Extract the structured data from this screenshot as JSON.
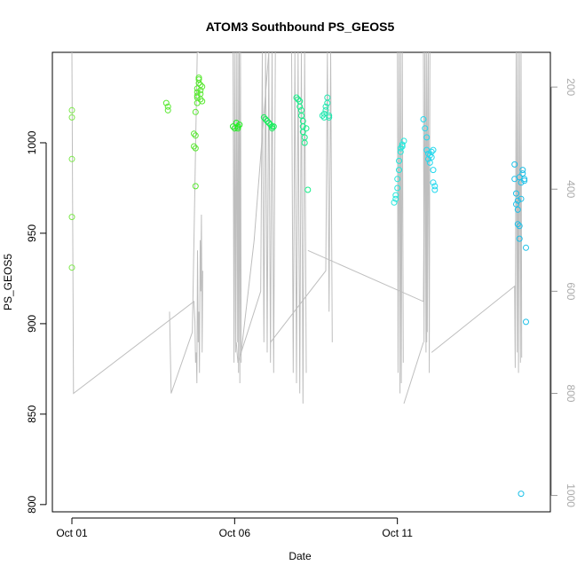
{
  "chart_data": {
    "type": "scatter",
    "title": "ATOM3 Southbound PS_GEOS5",
    "xlabel": "Date",
    "ylabel": "PS_GEOS5",
    "x_range_days": [
      -0.6,
      14.7
    ],
    "ylim": [
      796,
      1050
    ],
    "right_axis_lim": [
      132,
      1032
    ],
    "x_ticks": [
      {
        "day": 0,
        "label": "Oct 01"
      },
      {
        "day": 5,
        "label": "Oct 06"
      },
      {
        "day": 10,
        "label": "Oct 11"
      }
    ],
    "y_ticks": [
      800,
      850,
      900,
      950,
      1000
    ],
    "right_ticks": [
      200,
      400,
      600,
      800,
      1000
    ],
    "grid": false,
    "legend": "none",
    "colors": {
      "point_palette": [
        "#7CE84A",
        "#58E830",
        "#22EE22",
        "#14EE5A",
        "#14EE88",
        "#22E8B0",
        "#22E8DC",
        "#22D8EE",
        "#1CC0E8",
        "#1A9AE0"
      ],
      "track": "#BEBEBE"
    },
    "series": [
      {
        "x": [
          0.0,
          0.0,
          0.0,
          0.0,
          0.0
        ],
        "y": [
          1018,
          1014,
          991,
          959,
          931
        ]
      },
      {
        "x": [
          2.9,
          2.95,
          2.95,
          3.75,
          3.75,
          3.8,
          3.8,
          3.8,
          3.85,
          3.85,
          3.85,
          3.9,
          3.9,
          3.9,
          3.95,
          3.95,
          3.95,
          3.95,
          4.0,
          4.0,
          3.85,
          3.85,
          3.8
        ],
        "y": [
          1022,
          1020,
          1018,
          1005,
          998,
          997,
          1004,
          1017,
          1022,
          1026,
          1030,
          1033,
          1036,
          1035,
          1032,
          1029,
          1027,
          1024,
          1023,
          1031,
          1025,
          1028,
          976
        ]
      },
      {
        "x": [
          4.95,
          5.0,
          5.05,
          5.1,
          5.1,
          5.15
        ],
        "y": [
          1009,
          1008,
          1011,
          1009,
          1008,
          1010
        ]
      },
      {
        "x": [
          5.9,
          5.95,
          6.0,
          6.05,
          6.1,
          6.15,
          6.15,
          6.2
        ],
        "y": [
          1014,
          1013,
          1012,
          1011,
          1010,
          1009,
          1008,
          1009
        ]
      },
      {
        "x": [
          6.9,
          6.95,
          7.0,
          7.0,
          7.05,
          7.05,
          7.1,
          7.1,
          7.1,
          7.15,
          7.15,
          7.2,
          7.25
        ],
        "y": [
          1025,
          1024,
          1023,
          1020,
          1018,
          1015,
          1012,
          1009,
          1006,
          1003,
          1000,
          1008,
          974
        ]
      },
      {
        "x": [
          7.7,
          7.75,
          7.75,
          7.8,
          7.8,
          7.85,
          7.85,
          7.9,
          7.9
        ],
        "y": [
          1015,
          1014,
          1016,
          1018,
          1020,
          1022,
          1025,
          1014,
          1015
        ]
      },
      {
        "x": [
          9.9,
          9.95,
          9.95,
          10.0,
          10.0,
          10.05,
          10.05,
          10.1,
          10.1,
          10.15,
          10.15,
          10.2
        ],
        "y": [
          967,
          969,
          971,
          975,
          980,
          985,
          990,
          995,
          997,
          998,
          999,
          1001
        ]
      },
      {
        "x": [
          10.8,
          10.85,
          10.9,
          10.9,
          10.95,
          10.95,
          11.0,
          11.0,
          11.05,
          11.05,
          11.1,
          11.1,
          11.1,
          11.15,
          11.15
        ],
        "y": [
          1013,
          1008,
          1003,
          996,
          994,
          991,
          989,
          993,
          995,
          992,
          996,
          985,
          978,
          976,
          974
        ]
      },
      {
        "x": [
          13.6,
          13.6,
          13.65,
          13.65,
          13.7,
          13.7,
          13.7,
          13.75,
          13.75,
          13.8,
          13.8,
          13.85,
          13.85,
          13.9,
          13.9,
          13.95,
          13.95,
          13.75,
          13.8
        ],
        "y": [
          988,
          980,
          972,
          966,
          963,
          968,
          955,
          954,
          947,
          969,
          978,
          985,
          983,
          980,
          979,
          942,
          901,
          981,
          806
        ]
      }
    ],
    "tracks_right_axis": [
      {
        "x": [
          0.0,
          0.05,
          3.75,
          3.78,
          3.8,
          3.82,
          3.84,
          3.86,
          3.88,
          3.9,
          3.92,
          3.94,
          3.96,
          3.98,
          4.0,
          4.02
        ],
        "y": [
          132,
          800,
          620,
          660,
          740,
          720,
          780,
          520,
          700,
          640,
          760,
          500,
          600,
          450,
          720,
          560
        ]
      },
      {
        "x": [
          3.0,
          3.05,
          3.7,
          3.85,
          3.9
        ],
        "y": [
          640,
          800,
          680,
          132,
          132
        ]
      },
      {
        "x": [
          4.95,
          4.98,
          5.0,
          5.03,
          5.05,
          5.08,
          5.1,
          5.12,
          5.14,
          5.16,
          5.18,
          5.2
        ],
        "y": [
          132,
          740,
          132,
          720,
          132,
          700,
          132,
          760,
          132,
          780,
          132,
          740
        ]
      },
      {
        "x": [
          5.05,
          5.1,
          5.8,
          5.85,
          5.9,
          5.95,
          6.0,
          6.05,
          6.1,
          6.15,
          6.2,
          6.25
        ],
        "y": [
          700,
          740,
          600,
          132,
          700,
          132,
          720,
          132,
          740,
          132,
          760,
          132
        ]
      },
      {
        "x": [
          5.2,
          5.6,
          6.05
        ],
        "y": [
          720,
          500,
          132
        ]
      },
      {
        "x": [
          6.1,
          7.8,
          7.85,
          7.9,
          7.95,
          8.0
        ],
        "y": [
          700,
          560,
          132,
          640,
          132,
          700
        ]
      },
      {
        "x": [
          6.75,
          6.8,
          6.85,
          6.9,
          6.95,
          7.0,
          7.05,
          7.1,
          7.15,
          7.2
        ],
        "y": [
          132,
          760,
          132,
          780,
          132,
          800,
          132,
          820,
          132,
          760
        ]
      },
      {
        "x": [
          7.25,
          10.8,
          10.85,
          10.9,
          10.95
        ],
        "y": [
          520,
          620,
          132,
          700,
          132
        ]
      },
      {
        "x": [
          10.0,
          10.02,
          10.05,
          10.08,
          10.1,
          10.12,
          10.15,
          10.18
        ],
        "y": [
          132,
          760,
          132,
          800,
          132,
          780,
          132,
          740
        ]
      },
      {
        "x": [
          10.2,
          10.8
        ],
        "y": [
          820,
          700
        ]
      },
      {
        "x": [
          10.8,
          10.82,
          10.85,
          10.88,
          10.9,
          10.92,
          10.95,
          10.98,
          11.0
        ],
        "y": [
          132,
          700,
          132,
          720,
          132,
          680,
          132,
          760,
          132
        ]
      },
      {
        "x": [
          11.05,
          13.6,
          13.62,
          13.65,
          13.68,
          13.7,
          13.72,
          13.75,
          13.78,
          13.8,
          13.82
        ],
        "y": [
          720,
          590,
          750,
          132,
          720,
          132,
          760,
          132,
          740,
          132,
          730
        ]
      }
    ]
  }
}
